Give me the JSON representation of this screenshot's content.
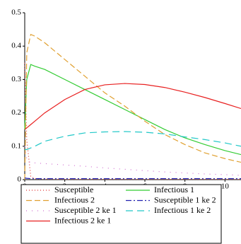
{
  "chart_data": {
    "type": "line",
    "x": [
      0,
      0.1,
      0.3,
      0.5,
      1,
      2,
      3,
      4,
      5,
      6,
      7,
      8,
      9,
      10,
      10.8
    ],
    "xlim": [
      0,
      10.8
    ],
    "xticks": [
      0,
      2,
      4,
      6,
      8,
      10
    ],
    "ylim": [
      0,
      0.5
    ],
    "yticks": [
      0,
      0.1,
      0.2,
      0.3,
      0.4,
      0.5
    ],
    "grid": false,
    "legend": "bottom",
    "series": [
      {
        "name": "Susceptible",
        "color": "#e03030",
        "dash": "dotted",
        "values": [
          0.35,
          0.12,
          0.01,
          0.003,
          0.002,
          0.001,
          0.001,
          0.001,
          0.001,
          0.001,
          0.001,
          0.001,
          0.001,
          0.001,
          0.001
        ]
      },
      {
        "name": "Infectious 1",
        "color": "#33cc33",
        "dash": "solid",
        "values": [
          0.15,
          0.3,
          0.345,
          0.34,
          0.33,
          0.3,
          0.27,
          0.24,
          0.21,
          0.18,
          0.15,
          0.125,
          0.105,
          0.087,
          0.075
        ]
      },
      {
        "name": "Infectious 2",
        "color": "#e0a030",
        "dash": "dashed",
        "values": [
          0,
          0.38,
          0.435,
          0.43,
          0.41,
          0.36,
          0.31,
          0.26,
          0.22,
          0.175,
          0.135,
          0.105,
          0.08,
          0.063,
          0.052
        ]
      },
      {
        "name": "Susceptible 1 ke 2",
        "color": "#2020b0",
        "dash": "dashdot",
        "values": [
          0.005,
          0.004,
          0.003,
          0.003,
          0.003,
          0.003,
          0.003,
          0.003,
          0.003,
          0.003,
          0.003,
          0.003,
          0.003,
          0.003,
          0.003
        ]
      },
      {
        "name": "Susceptible 2 ke 1",
        "color": "#d070d0",
        "dash": "sparse",
        "values": [
          0.1,
          0.06,
          0.05,
          0.05,
          0.048,
          0.044,
          0.04,
          0.035,
          0.031,
          0.027,
          0.023,
          0.02,
          0.017,
          0.015,
          0.013
        ]
      },
      {
        "name": "Infectious 1 ke 2",
        "color": "#20c8c8",
        "dash": "longdash",
        "values": [
          0.09,
          0.09,
          0.095,
          0.1,
          0.115,
          0.13,
          0.14,
          0.143,
          0.144,
          0.142,
          0.137,
          0.128,
          0.12,
          0.11,
          0.1
        ]
      },
      {
        "name": "Infectious 2 ke 1",
        "color": "#e82020",
        "dash": "solid",
        "values": [
          0.15,
          0.155,
          0.165,
          0.175,
          0.2,
          0.24,
          0.27,
          0.284,
          0.288,
          0.285,
          0.276,
          0.262,
          0.246,
          0.228,
          0.213
        ]
      }
    ]
  }
}
